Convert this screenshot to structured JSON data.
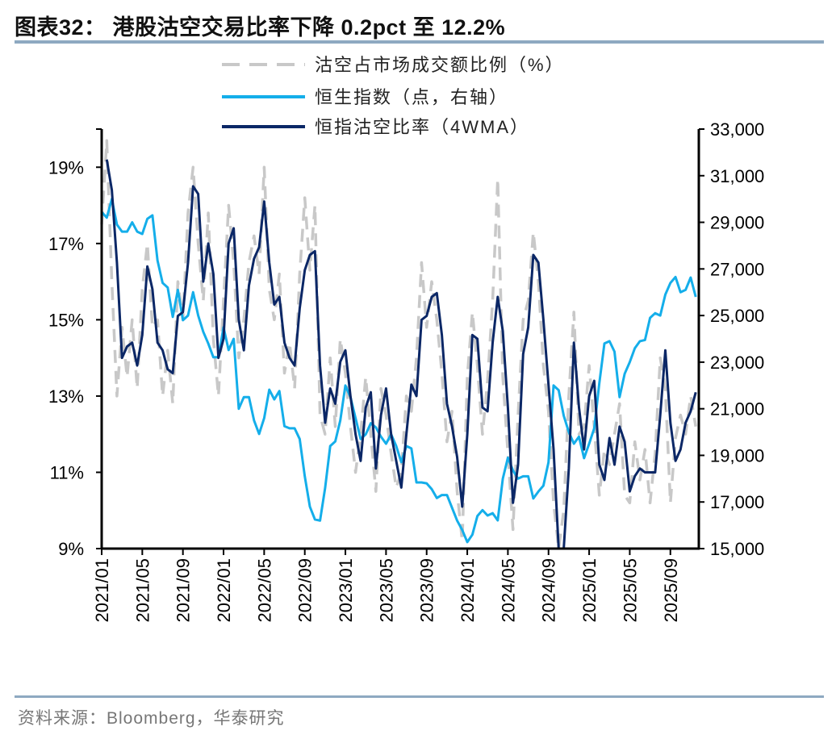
{
  "header": {
    "title": "图表32：  港股沽空交易比率下降 0.2pct 至 12.2%"
  },
  "footer": {
    "source": "资料来源：Bloomberg，华泰研究"
  },
  "colors": {
    "short_ratio_raw": "#C8C8C8",
    "hsi": "#14AEEA",
    "short_ratio_4wma": "#0B2766",
    "rule": "#8EA9C1"
  },
  "chart_data": {
    "type": "line",
    "title": "图表32：  港股沽空交易比率下降 0.2pct 至 12.2%",
    "legend_position": "top",
    "grid": false,
    "x_type": "date",
    "xlim": [
      "2021-01-01",
      "2025-11-25"
    ],
    "x_tick_labels": [
      "2021/01",
      "2021/05",
      "2021/09",
      "2022/01",
      "2022/05",
      "2022/09",
      "2023/01",
      "2023/05",
      "2023/09",
      "2024/01",
      "2024/05",
      "2024/09",
      "2025/01",
      "2025/05",
      "2025/09"
    ],
    "left_axis": {
      "ylim": [
        9,
        20
      ],
      "ticks": [
        9,
        11,
        13,
        15,
        17,
        19
      ],
      "tick_labels": [
        "9%",
        "11%",
        "13%",
        "15%",
        "17%",
        "19%"
      ],
      "unit": "%"
    },
    "right_axis": {
      "ylim": [
        15000,
        33000
      ],
      "ticks": [
        15000,
        17000,
        19000,
        21000,
        23000,
        25000,
        27000,
        29000,
        31000,
        33000
      ],
      "tick_labels": [
        "15,000",
        "17,000",
        "19,000",
        "21,000",
        "23,000",
        "25,000",
        "27,000",
        "29,000",
        "31,000",
        "33,000"
      ]
    },
    "x": [
      "2021-01-01",
      "2021-01-16",
      "2021-02-01",
      "2021-02-16",
      "2021-03-01",
      "2021-03-16",
      "2021-04-01",
      "2021-04-16",
      "2021-05-01",
      "2021-05-16",
      "2021-06-01",
      "2021-06-16",
      "2021-07-01",
      "2021-07-16",
      "2021-08-01",
      "2021-08-16",
      "2021-09-01",
      "2021-09-16",
      "2021-10-01",
      "2021-10-16",
      "2021-11-01",
      "2021-11-16",
      "2021-12-01",
      "2021-12-16",
      "2022-01-01",
      "2022-01-16",
      "2022-02-01",
      "2022-02-16",
      "2022-03-01",
      "2022-03-16",
      "2022-04-01",
      "2022-04-16",
      "2022-05-01",
      "2022-05-16",
      "2022-06-01",
      "2022-06-16",
      "2022-07-01",
      "2022-07-16",
      "2022-08-01",
      "2022-08-16",
      "2022-09-01",
      "2022-09-16",
      "2022-10-01",
      "2022-10-16",
      "2022-11-01",
      "2022-11-16",
      "2022-12-01",
      "2022-12-16",
      "2023-01-01",
      "2023-01-16",
      "2023-02-01",
      "2023-02-16",
      "2023-03-01",
      "2023-03-16",
      "2023-04-01",
      "2023-04-16",
      "2023-05-01",
      "2023-05-16",
      "2023-06-01",
      "2023-06-16",
      "2023-07-01",
      "2023-07-16",
      "2023-08-01",
      "2023-08-16",
      "2023-09-01",
      "2023-09-16",
      "2023-10-01",
      "2023-10-16",
      "2023-11-01",
      "2023-11-16",
      "2023-12-01",
      "2023-12-16",
      "2024-01-01",
      "2024-01-16",
      "2024-02-01",
      "2024-02-16",
      "2024-03-01",
      "2024-03-16",
      "2024-04-01",
      "2024-04-16",
      "2024-05-01",
      "2024-05-16",
      "2024-06-01",
      "2024-06-16",
      "2024-07-01",
      "2024-07-16",
      "2024-08-01",
      "2024-08-16",
      "2024-09-01",
      "2024-09-16",
      "2024-10-01",
      "2024-10-16",
      "2024-11-01",
      "2024-11-16",
      "2024-12-01",
      "2024-12-16",
      "2025-01-01",
      "2025-01-16",
      "2025-02-01",
      "2025-02-16",
      "2025-03-01",
      "2025-03-16",
      "2025-04-01",
      "2025-04-16",
      "2025-05-01",
      "2025-05-16",
      "2025-06-01",
      "2025-06-16",
      "2025-07-01",
      "2025-07-16",
      "2025-08-01",
      "2025-08-16",
      "2025-09-01",
      "2025-09-16",
      "2025-10-01",
      "2025-10-16",
      "2025-11-01",
      "2025-11-16"
    ],
    "series": [
      {
        "name": "沽空占市场成交额比例（%）",
        "axis": "left",
        "style": "dashed",
        "values": [
          17.5,
          19.7,
          16.0,
          13.0,
          14.8,
          13.5,
          15.0,
          13.2,
          15.8,
          17.0,
          14.8,
          15.0,
          13.0,
          14.2,
          12.8,
          16.0,
          15.0,
          17.8,
          19.0,
          17.0,
          15.5,
          17.8,
          14.5,
          13.0,
          15.5,
          18.0,
          16.5,
          14.0,
          15.0,
          16.5,
          17.2,
          16.2,
          19.0,
          15.8,
          15.0,
          16.2,
          13.6,
          14.4,
          13.2,
          16.2,
          18.2,
          16.3,
          18.0,
          12.5,
          12.0,
          14.0,
          12.2,
          14.5,
          13.6,
          12.2,
          11.0,
          12.0,
          13.5,
          12.0,
          10.5,
          13.2,
          12.5,
          11.5,
          10.6,
          11.0,
          13.0,
          12.6,
          14.0,
          16.5,
          14.8,
          16.0,
          15.0,
          13.6,
          11.8,
          12.6,
          10.5,
          9.2,
          13.5,
          15.2,
          13.8,
          12.0,
          13.4,
          15.5,
          18.7,
          13.5,
          11.5,
          9.5,
          12.5,
          15.0,
          15.5,
          17.3,
          16.0,
          13.8,
          12.6,
          10.2,
          9.0,
          10.0,
          13.0,
          15.2,
          12.0,
          12.2,
          13.8,
          12.2,
          10.4,
          11.6,
          11.2,
          12.0,
          12.8,
          10.4,
          10.2,
          11.8,
          10.8,
          11.6,
          10.2,
          11.5,
          14.0,
          13.2,
          10.2,
          11.9,
          12.5,
          12.0,
          13.0,
          12.2
        ]
      },
      {
        "name": "恒生指数（点，右轴）",
        "axis": "right",
        "style": "solid",
        "values": [
          29440,
          29200,
          30000,
          28900,
          28600,
          28600,
          29000,
          28600,
          28500,
          29150,
          29300,
          27360,
          26400,
          26200,
          24940,
          26100,
          24800,
          25000,
          26000,
          25000,
          24300,
          23800,
          23210,
          23210,
          24500,
          23520,
          24000,
          21000,
          21500,
          21500,
          20500,
          19920,
          20600,
          21820,
          21400,
          21760,
          20250,
          20160,
          20160,
          19700,
          18100,
          16800,
          16250,
          16200,
          17600,
          19400,
          19600,
          20500,
          22000,
          21500,
          20600,
          19700,
          19900,
          20380,
          20200,
          19800,
          19500,
          19900,
          19400,
          18710,
          19400,
          19300,
          17840,
          17840,
          17800,
          17550,
          17170,
          17300,
          17300,
          16750,
          16200,
          15800,
          15280,
          15600,
          16400,
          16650,
          16420,
          16520,
          16210,
          18000,
          18900,
          18350,
          18000,
          18100,
          18100,
          17150,
          17450,
          17700,
          18700,
          22000,
          21800,
          20700,
          20000,
          19500,
          19800,
          18880,
          19500,
          20160,
          22100,
          23800,
          23900,
          23450,
          21500,
          22500,
          23000,
          23600,
          23900,
          23950,
          24900,
          25100,
          25000,
          25900,
          26400,
          26650,
          26000,
          26100,
          26630,
          25800
        ]
      },
      {
        "name": "恒指沽空比率（4WMA）",
        "axis": "left",
        "style": "solid",
        "values": [
          null,
          19.2,
          18.4,
          16.5,
          14.0,
          14.3,
          14.4,
          13.8,
          14.6,
          16.4,
          15.8,
          14.4,
          14.2,
          13.7,
          13.6,
          15.1,
          15.2,
          16.5,
          18.5,
          18.3,
          16.0,
          17.0,
          16.2,
          14.0,
          14.5,
          17.0,
          17.4,
          15.0,
          14.2,
          15.9,
          16.6,
          16.9,
          18.1,
          16.5,
          15.4,
          15.6,
          14.4,
          14.0,
          13.8,
          15.3,
          16.3,
          16.7,
          16.8,
          13.8,
          12.3,
          13.2,
          12.8,
          13.9,
          14.2,
          13.0,
          12.0,
          11.3,
          12.7,
          13.1,
          11.1,
          12.5,
          13.2,
          12.0,
          11.3,
          10.6,
          12.0,
          13.3,
          13.0,
          15.0,
          15.1,
          15.6,
          15.7,
          14.6,
          12.8,
          12.2,
          11.4,
          10.1,
          12.0,
          14.6,
          14.5,
          12.7,
          12.6,
          14.4,
          15.6,
          14.7,
          12.7,
          10.2,
          11.2,
          14.1,
          14.8,
          16.7,
          16.5,
          15.0,
          13.3,
          11.6,
          9.0,
          9.0,
          11.1,
          14.4,
          12.7,
          11.6,
          13.0,
          13.4,
          11.2,
          10.8,
          11.9,
          11.2,
          12.2,
          11.8,
          10.5,
          10.9,
          11.1,
          11.0,
          11.0,
          11.0,
          12.5,
          14.2,
          12.3,
          11.3,
          11.6,
          12.3,
          12.6,
          13.1
        ]
      }
    ]
  }
}
